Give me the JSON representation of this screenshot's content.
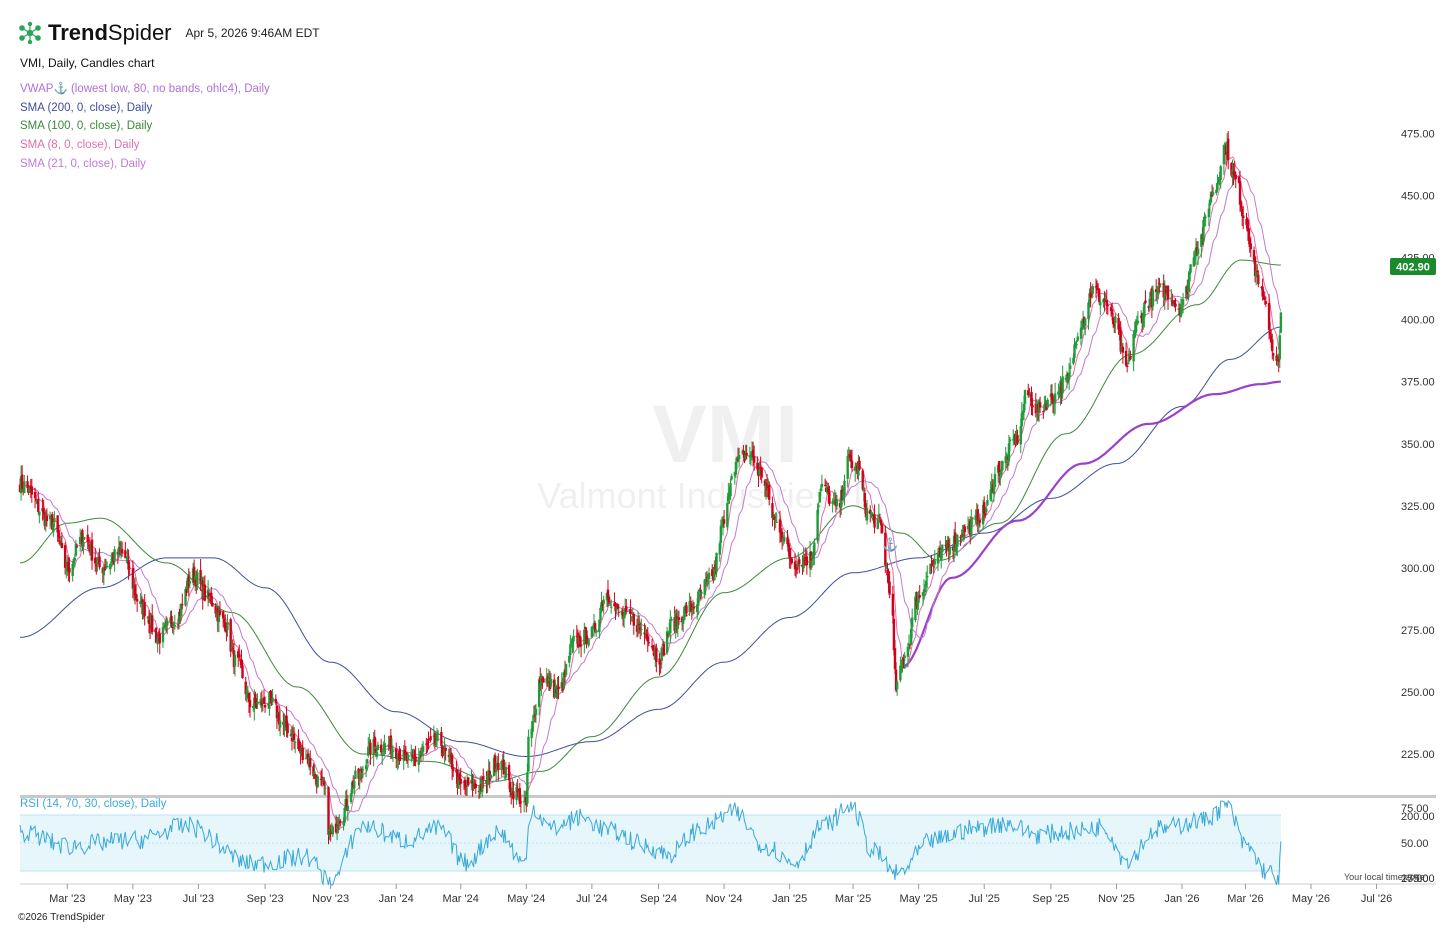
{
  "header": {
    "brand_bold": "Trend",
    "brand_regular": "Spider",
    "timestamp": "Apr 5, 2026 9:46AM EDT"
  },
  "chart_description": "VMI, Daily, Candles chart",
  "watermark": {
    "ticker": "VMI",
    "company": "Valmont Industries, I"
  },
  "legend": [
    {
      "label": "VWAP⚓ (lowest low, 80, no bands, ohlc4), Daily",
      "color": "#b46fd6"
    },
    {
      "label": "SMA (200, 0, close), Daily",
      "color": "#3f4e9c"
    },
    {
      "label": "SMA (100, 0, close), Daily",
      "color": "#3b8a3b"
    },
    {
      "label": "SMA (8, 0, close), Daily",
      "color": "#e06fa8"
    },
    {
      "label": "SMA (21, 0, close), Daily",
      "color": "#c27ad6"
    }
  ],
  "rsi_label": "RSI (14, 70, 30, close), Daily",
  "last_price": "402.90",
  "footer": {
    "copyright": "©2026 TrendSpider",
    "local_time": "Your local time zone"
  },
  "colors": {
    "up": "#1e9c3a",
    "down": "#d0021b",
    "rsi": "#3aa9d8",
    "rsi_band": "#e6f6fb",
    "price_badge": "#1b8a2a"
  },
  "chart_data": {
    "type": "candlestick",
    "ticker": "VMI",
    "ylim": [
      165,
      485
    ],
    "y_ticks": [
      "475.00",
      "450.00",
      "425.00",
      "400.00",
      "375.00",
      "350.00",
      "325.00",
      "300.00",
      "275.00",
      "250.00",
      "225.00",
      "200.00",
      "175.00"
    ],
    "x_ticks": [
      "Mar '23",
      "May '23",
      "Jul '23",
      "Sep '23",
      "Nov '23",
      "Jan '24",
      "Mar '24",
      "May '24",
      "Jul '24",
      "Sep '24",
      "Nov '24",
      "Jan '25",
      "Mar '25",
      "May '25",
      "Jul '25",
      "Sep '25",
      "Nov '25",
      "Jan '26",
      "Mar '26",
      "May '26",
      "Jul '26"
    ],
    "rsi_ticks": [
      "75.00",
      "50.00",
      "25.00"
    ],
    "rsi_levels": {
      "upper": 70,
      "lower": 30,
      "mid": 50
    },
    "close_anchors": [
      [
        "2023-01-16",
        334
      ],
      [
        "2023-02-15",
        318
      ],
      [
        "2023-03-01",
        300
      ],
      [
        "2023-03-16",
        312
      ],
      [
        "2023-04-01",
        300
      ],
      [
        "2023-04-20",
        306
      ],
      [
        "2023-05-10",
        284
      ],
      [
        "2023-05-25",
        272
      ],
      [
        "2023-06-10",
        280
      ],
      [
        "2023-06-26",
        297
      ],
      [
        "2023-07-10",
        288
      ],
      [
        "2023-07-25",
        278
      ],
      [
        "2023-08-05",
        262
      ],
      [
        "2023-08-20",
        245
      ],
      [
        "2023-09-05",
        246
      ],
      [
        "2023-09-20",
        236
      ],
      [
        "2023-10-05",
        226
      ],
      [
        "2023-10-25",
        212
      ],
      [
        "2023-11-01",
        192
      ],
      [
        "2023-11-10",
        200
      ],
      [
        "2023-11-25",
        215
      ],
      [
        "2023-12-10",
        228
      ],
      [
        "2023-12-25",
        228
      ],
      [
        "2024-01-15",
        222
      ],
      [
        "2024-01-31",
        228
      ],
      [
        "2024-02-10",
        230
      ],
      [
        "2024-02-20",
        222
      ],
      [
        "2024-03-01",
        212
      ],
      [
        "2024-03-20",
        212
      ],
      [
        "2024-04-05",
        222
      ],
      [
        "2024-04-20",
        210
      ],
      [
        "2024-05-01",
        204
      ],
      [
        "2024-05-03",
        230
      ],
      [
        "2024-05-15",
        256
      ],
      [
        "2024-05-31",
        250
      ],
      [
        "2024-06-15",
        270
      ],
      [
        "2024-06-30",
        273
      ],
      [
        "2024-07-15",
        290
      ],
      [
        "2024-07-25",
        282
      ],
      [
        "2024-08-05",
        280
      ],
      [
        "2024-08-20",
        274
      ],
      [
        "2024-09-01",
        264
      ],
      [
        "2024-09-15",
        278
      ],
      [
        "2024-09-30",
        284
      ],
      [
        "2024-10-20",
        295
      ],
      [
        "2024-11-01",
        318
      ],
      [
        "2024-11-10",
        342
      ],
      [
        "2024-11-25",
        346
      ],
      [
        "2024-12-05",
        338
      ],
      [
        "2024-12-20",
        318
      ],
      [
        "2025-01-05",
        302
      ],
      [
        "2025-01-20",
        304
      ],
      [
        "2025-01-31",
        332
      ],
      [
        "2025-02-15",
        324
      ],
      [
        "2025-02-25",
        343
      ],
      [
        "2025-03-05",
        340
      ],
      [
        "2025-03-15",
        322
      ],
      [
        "2025-03-25",
        318
      ],
      [
        "2025-04-05",
        292
      ],
      [
        "2025-04-10",
        252
      ],
      [
        "2025-04-20",
        268
      ],
      [
        "2025-04-30",
        288
      ],
      [
        "2025-05-15",
        302
      ],
      [
        "2025-05-31",
        310
      ],
      [
        "2025-06-15",
        316
      ],
      [
        "2025-06-30",
        322
      ],
      [
        "2025-07-15",
        340
      ],
      [
        "2025-07-31",
        352
      ],
      [
        "2025-08-10",
        370
      ],
      [
        "2025-08-20",
        364
      ],
      [
        "2025-09-01",
        368
      ],
      [
        "2025-09-15",
        375
      ],
      [
        "2025-09-30",
        400
      ],
      [
        "2025-10-10",
        412
      ],
      [
        "2025-10-20",
        408
      ],
      [
        "2025-10-31",
        398
      ],
      [
        "2025-11-10",
        380
      ],
      [
        "2025-11-20",
        398
      ],
      [
        "2025-12-01",
        408
      ],
      [
        "2025-12-15",
        412
      ],
      [
        "2025-12-31",
        405
      ],
      [
        "2026-01-15",
        430
      ],
      [
        "2026-01-31",
        452
      ],
      [
        "2026-02-10",
        470
      ],
      [
        "2026-02-20",
        456
      ],
      [
        "2026-03-01",
        440
      ],
      [
        "2026-03-10",
        420
      ],
      [
        "2026-03-20",
        405
      ],
      [
        "2026-03-27",
        388
      ],
      [
        "2026-04-01",
        382
      ],
      [
        "2026-04-03",
        402.9
      ]
    ],
    "sma200_anchors": [
      [
        "2023-01-16",
        272
      ],
      [
        "2023-04-01",
        292
      ],
      [
        "2023-06-01",
        304
      ],
      [
        "2023-07-15",
        304
      ],
      [
        "2023-09-01",
        292
      ],
      [
        "2023-11-01",
        262
      ],
      [
        "2024-01-01",
        242
      ],
      [
        "2024-03-01",
        230
      ],
      [
        "2024-05-01",
        224
      ],
      [
        "2024-07-01",
        230
      ],
      [
        "2024-09-01",
        243
      ],
      [
        "2024-11-01",
        262
      ],
      [
        "2025-01-01",
        280
      ],
      [
        "2025-03-01",
        298
      ],
      [
        "2025-05-01",
        304
      ],
      [
        "2025-07-01",
        314
      ],
      [
        "2025-09-01",
        328
      ],
      [
        "2025-11-01",
        342
      ],
      [
        "2026-01-01",
        365
      ],
      [
        "2026-02-15",
        384
      ],
      [
        "2026-04-03",
        397
      ]
    ],
    "sma100_anchors": [
      [
        "2023-01-16",
        302
      ],
      [
        "2023-03-01",
        318
      ],
      [
        "2023-04-01",
        320
      ],
      [
        "2023-06-01",
        302
      ],
      [
        "2023-08-01",
        282
      ],
      [
        "2023-10-01",
        252
      ],
      [
        "2023-12-01",
        225
      ],
      [
        "2024-02-01",
        222
      ],
      [
        "2024-04-01",
        214
      ],
      [
        "2024-05-15",
        218
      ],
      [
        "2024-07-01",
        232
      ],
      [
        "2024-09-01",
        256
      ],
      [
        "2024-11-01",
        290
      ],
      [
        "2025-01-01",
        304
      ],
      [
        "2025-03-01",
        325
      ],
      [
        "2025-04-15",
        314
      ],
      [
        "2025-05-20",
        303
      ],
      [
        "2025-07-15",
        318
      ],
      [
        "2025-09-15",
        354
      ],
      [
        "2025-11-15",
        386
      ],
      [
        "2026-01-15",
        406
      ],
      [
        "2026-02-25",
        424
      ],
      [
        "2026-04-03",
        422
      ]
    ],
    "vwap_anchors": [
      [
        "2025-04-15",
        260
      ],
      [
        "2025-06-01",
        296
      ],
      [
        "2025-08-01",
        319
      ],
      [
        "2025-10-01",
        342
      ],
      [
        "2025-12-01",
        358
      ],
      [
        "2026-02-01",
        370
      ],
      [
        "2026-03-15",
        374
      ],
      [
        "2026-04-03",
        375
      ]
    ],
    "rsi_anchors": [
      [
        "2023-01-16",
        58
      ],
      [
        "2023-03-01",
        48
      ],
      [
        "2023-05-01",
        52
      ],
      [
        "2023-06-20",
        62
      ],
      [
        "2023-08-20",
        35
      ],
      [
        "2023-10-10",
        40
      ],
      [
        "2023-11-01",
        22
      ],
      [
        "2023-12-01",
        62
      ],
      [
        "2024-01-10",
        52
      ],
      [
        "2024-02-10",
        60
      ],
      [
        "2024-03-05",
        36
      ],
      [
        "2024-04-05",
        58
      ],
      [
        "2024-04-30",
        35
      ],
      [
        "2024-05-05",
        76
      ],
      [
        "2024-05-25",
        60
      ],
      [
        "2024-06-20",
        68
      ],
      [
        "2024-07-20",
        58
      ],
      [
        "2024-08-20",
        48
      ],
      [
        "2024-09-10",
        42
      ],
      [
        "2024-10-10",
        60
      ],
      [
        "2024-11-10",
        72
      ],
      [
        "2024-12-10",
        48
      ],
      [
        "2025-01-05",
        36
      ],
      [
        "2025-02-01",
        62
      ],
      [
        "2025-02-27",
        76
      ],
      [
        "2025-03-20",
        44
      ],
      [
        "2025-04-10",
        28
      ],
      [
        "2025-05-15",
        52
      ],
      [
        "2025-06-20",
        60
      ],
      [
        "2025-07-20",
        64
      ],
      [
        "2025-08-20",
        56
      ],
      [
        "2025-09-20",
        58
      ],
      [
        "2025-10-20",
        62
      ],
      [
        "2025-11-10",
        38
      ],
      [
        "2025-12-10",
        60
      ],
      [
        "2026-01-20",
        66
      ],
      [
        "2026-02-12",
        76
      ],
      [
        "2026-03-01",
        48
      ],
      [
        "2026-03-20",
        30
      ],
      [
        "2026-04-01",
        25
      ],
      [
        "2026-04-03",
        45
      ]
    ]
  }
}
